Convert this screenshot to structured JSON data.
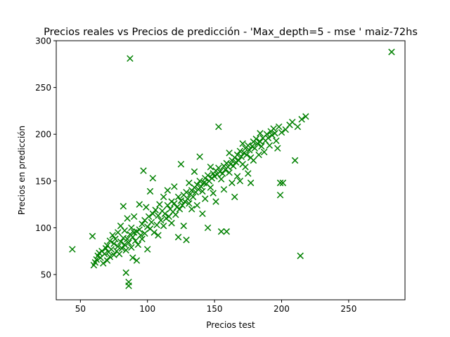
{
  "chart_data": {
    "type": "scatter",
    "title": "Precios reales vs Precios de predicción - 'Max_depth=5 - mse ' maiz-72hs",
    "xlabel": "Precios test",
    "ylabel": "Precios en predicción",
    "xlim": [
      32,
      292
    ],
    "ylim": [
      23,
      300
    ],
    "xticks": [
      50,
      100,
      150,
      200,
      250
    ],
    "yticks": [
      50,
      100,
      150,
      200,
      250,
      300
    ],
    "marker": "x",
    "color": "#008000",
    "grid": false,
    "legend": "none",
    "points": [
      [
        44,
        77
      ],
      [
        59,
        91
      ],
      [
        60,
        60
      ],
      [
        61,
        63
      ],
      [
        62,
        66
      ],
      [
        63,
        70
      ],
      [
        64,
        73
      ],
      [
        65,
        68
      ],
      [
        66,
        75
      ],
      [
        67,
        62
      ],
      [
        68,
        72
      ],
      [
        69,
        78
      ],
      [
        70,
        65
      ],
      [
        70,
        81
      ],
      [
        71,
        74
      ],
      [
        72,
        69
      ],
      [
        72,
        86
      ],
      [
        73,
        77
      ],
      [
        74,
        92
      ],
      [
        75,
        71
      ],
      [
        75,
        83
      ],
      [
        76,
        88
      ],
      [
        77,
        75
      ],
      [
        78,
        80
      ],
      [
        78,
        95
      ],
      [
        79,
        72
      ],
      [
        80,
        85
      ],
      [
        80,
        102
      ],
      [
        81,
        78
      ],
      [
        82,
        89
      ],
      [
        82,
        123
      ],
      [
        83,
        82
      ],
      [
        83,
        97
      ],
      [
        84,
        76
      ],
      [
        84,
        52
      ],
      [
        85,
        88
      ],
      [
        85,
        110
      ],
      [
        86,
        84
      ],
      [
        86,
        38
      ],
      [
        86,
        42
      ],
      [
        87,
        281
      ],
      [
        87,
        93
      ],
      [
        88,
        79
      ],
      [
        88,
        100
      ],
      [
        89,
        90
      ],
      [
        89,
        68
      ],
      [
        90,
        95
      ],
      [
        90,
        112
      ],
      [
        91,
        86
      ],
      [
        92,
        96
      ],
      [
        92,
        65
      ],
      [
        93,
        82
      ],
      [
        94,
        98
      ],
      [
        94,
        125
      ],
      [
        95,
        92
      ],
      [
        96,
        104
      ],
      [
        96,
        88
      ],
      [
        97,
        161
      ],
      [
        98,
        94
      ],
      [
        98,
        108
      ],
      [
        99,
        122
      ],
      [
        100,
        101
      ],
      [
        100,
        77
      ],
      [
        101,
        112
      ],
      [
        102,
        99
      ],
      [
        102,
        139
      ],
      [
        103,
        106
      ],
      [
        104,
        153
      ],
      [
        104,
        115
      ],
      [
        105,
        95
      ],
      [
        106,
        119
      ],
      [
        107,
        103
      ],
      [
        108,
        113
      ],
      [
        108,
        92
      ],
      [
        109,
        125
      ],
      [
        110,
        108
      ],
      [
        111,
        118
      ],
      [
        112,
        102
      ],
      [
        112,
        133
      ],
      [
        113,
        115
      ],
      [
        114,
        110
      ],
      [
        115,
        124
      ],
      [
        115,
        140
      ],
      [
        116,
        112
      ],
      [
        117,
        120
      ],
      [
        118,
        128
      ],
      [
        118,
        105
      ],
      [
        119,
        117
      ],
      [
        120,
        126
      ],
      [
        120,
        144
      ],
      [
        121,
        114
      ],
      [
        122,
        122
      ],
      [
        123,
        133
      ],
      [
        123,
        90
      ],
      [
        124,
        120
      ],
      [
        125,
        129
      ],
      [
        125,
        168
      ],
      [
        126,
        124
      ],
      [
        127,
        135
      ],
      [
        127,
        102
      ],
      [
        128,
        128
      ],
      [
        129,
        138
      ],
      [
        129,
        87
      ],
      [
        130,
        131
      ],
      [
        131,
        126
      ],
      [
        131,
        148
      ],
      [
        132,
        136
      ],
      [
        133,
        140
      ],
      [
        133,
        120
      ],
      [
        134,
        133
      ],
      [
        135,
        143
      ],
      [
        135,
        160
      ],
      [
        136,
        138
      ],
      [
        137,
        146
      ],
      [
        137,
        124
      ],
      [
        138,
        141
      ],
      [
        139,
        150
      ],
      [
        139,
        176
      ],
      [
        140,
        144
      ],
      [
        141,
        139
      ],
      [
        141,
        115
      ],
      [
        142,
        148
      ],
      [
        143,
        153
      ],
      [
        143,
        131
      ],
      [
        144,
        147
      ],
      [
        145,
        156
      ],
      [
        145,
        100
      ],
      [
        146,
        150
      ],
      [
        147,
        143
      ],
      [
        147,
        165
      ],
      [
        148,
        153
      ],
      [
        149,
        158
      ],
      [
        149,
        137
      ],
      [
        150,
        155
      ],
      [
        151,
        161
      ],
      [
        151,
        128
      ],
      [
        152,
        157
      ],
      [
        153,
        164
      ],
      [
        153,
        208
      ],
      [
        154,
        160
      ],
      [
        155,
        152
      ],
      [
        155,
        96
      ],
      [
        156,
        158
      ],
      [
        157,
        166
      ],
      [
        157,
        141
      ],
      [
        158,
        162
      ],
      [
        159,
        169
      ],
      [
        159,
        96
      ],
      [
        160,
        165
      ],
      [
        161,
        159
      ],
      [
        161,
        180
      ],
      [
        162,
        168
      ],
      [
        163,
        172
      ],
      [
        163,
        148
      ],
      [
        164,
        166
      ],
      [
        165,
        175
      ],
      [
        165,
        133
      ],
      [
        166,
        170
      ],
      [
        167,
        178
      ],
      [
        167,
        155
      ],
      [
        168,
        172
      ],
      [
        169,
        182
      ],
      [
        169,
        150
      ],
      [
        170,
        176
      ],
      [
        171,
        168
      ],
      [
        171,
        190
      ],
      [
        172,
        180
      ],
      [
        173,
        185
      ],
      [
        173,
        165
      ],
      [
        174,
        178
      ],
      [
        175,
        188
      ],
      [
        175,
        158
      ],
      [
        176,
        183
      ],
      [
        177,
        175
      ],
      [
        177,
        148
      ],
      [
        178,
        187
      ],
      [
        179,
        192
      ],
      [
        179,
        172
      ],
      [
        180,
        185
      ],
      [
        181,
        195
      ],
      [
        182,
        190
      ],
      [
        183,
        178
      ],
      [
        184,
        192
      ],
      [
        184,
        201
      ],
      [
        185,
        187
      ],
      [
        186,
        196
      ],
      [
        187,
        181
      ],
      [
        188,
        193
      ],
      [
        189,
        200
      ],
      [
        190,
        196
      ],
      [
        191,
        188
      ],
      [
        192,
        203
      ],
      [
        193,
        199
      ],
      [
        194,
        206
      ],
      [
        195,
        201
      ],
      [
        196,
        193
      ],
      [
        197,
        185
      ],
      [
        198,
        208
      ],
      [
        199,
        135
      ],
      [
        199,
        148
      ],
      [
        200,
        202
      ],
      [
        201,
        148
      ],
      [
        203,
        205
      ],
      [
        206,
        210
      ],
      [
        208,
        213
      ],
      [
        210,
        172
      ],
      [
        212,
        208
      ],
      [
        214,
        70
      ],
      [
        215,
        216
      ],
      [
        218,
        219
      ],
      [
        282,
        288
      ]
    ]
  }
}
